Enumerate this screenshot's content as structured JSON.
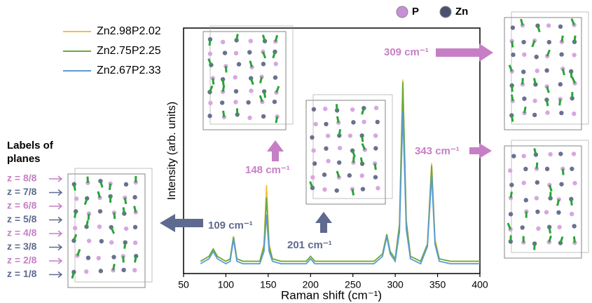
{
  "chart_data": {
    "type": "line",
    "x_label": "Raman shift (cm⁻¹)",
    "y_label": "Intensity (arb. units)",
    "xlim": [
      50,
      400
    ],
    "xticks": [
      50,
      100,
      150,
      200,
      250,
      300,
      350,
      400
    ],
    "ylim": [
      0,
      100
    ],
    "x": [
      70,
      80,
      85,
      90,
      100,
      105,
      109,
      113,
      120,
      130,
      140,
      145,
      148,
      151,
      155,
      165,
      180,
      195,
      200,
      205,
      220,
      240,
      260,
      275,
      285,
      290,
      294,
      300,
      305,
      309,
      313,
      318,
      330,
      338,
      343,
      347,
      352,
      365,
      380,
      400
    ],
    "series": [
      {
        "name": "Zn2.98P2.02",
        "color": "#f5c040",
        "values": [
          5,
          7,
          10,
          7,
          5,
          6,
          15,
          6,
          5,
          5,
          5,
          12,
          36,
          12,
          6,
          5,
          5,
          5,
          7,
          5,
          5,
          5,
          5,
          5,
          8,
          16,
          9,
          6,
          20,
          79,
          22,
          7,
          5,
          12,
          45,
          14,
          6,
          5,
          5,
          5
        ]
      },
      {
        "name": "Zn2.75P2.25",
        "color": "#6aaa3a",
        "values": [
          5,
          7,
          10,
          7,
          5,
          6,
          15,
          6,
          5,
          5,
          5,
          11,
          31,
          11,
          6,
          5,
          5,
          5,
          7,
          5,
          5,
          5,
          5,
          5,
          8,
          16,
          9,
          6,
          20,
          78,
          21,
          7,
          5,
          12,
          44,
          13,
          6,
          5,
          5,
          5
        ]
      },
      {
        "name": "Zn2.67P2.33",
        "color": "#5b9bd5",
        "values": [
          4,
          6,
          9,
          6,
          4,
          5,
          14,
          5,
          4,
          4,
          4,
          9,
          24,
          9,
          5,
          4,
          4,
          4,
          6,
          4,
          4,
          4,
          4,
          4,
          7,
          15,
          8,
          5,
          17,
          66,
          18,
          6,
          4,
          11,
          40,
          12,
          5,
          4,
          4,
          4
        ]
      }
    ],
    "atom_legend": [
      {
        "name": "P",
        "color": "#c98fd6"
      },
      {
        "name": "Zn",
        "color": "#4a5070"
      }
    ],
    "annotations": [
      {
        "text": "309 cm⁻¹",
        "color": "#c67fc6"
      },
      {
        "text": "343 cm⁻¹",
        "color": "#c67fc6"
      },
      {
        "text": "148 cm⁻¹",
        "color": "#c67fc6"
      },
      {
        "text": "201 cm⁻¹",
        "color": "#5f6a8f"
      },
      {
        "text": "109 cm⁻¹",
        "color": "#5f6a8f"
      }
    ],
    "planes_title": "Labels of planes",
    "planes": [
      {
        "text": "z = 8/8",
        "color": "#c67fc6"
      },
      {
        "text": "z = 7/8",
        "color": "#5f6a8f"
      },
      {
        "text": "z = 6/8",
        "color": "#c67fc6"
      },
      {
        "text": "z = 5/8",
        "color": "#5f6a8f"
      },
      {
        "text": "z = 4/8",
        "color": "#c67fc6"
      },
      {
        "text": "z = 3/8",
        "color": "#5f6a8f"
      },
      {
        "text": "z = 2/8",
        "color": "#c67fc6"
      },
      {
        "text": "z = 1/8",
        "color": "#5f6a8f"
      }
    ]
  }
}
